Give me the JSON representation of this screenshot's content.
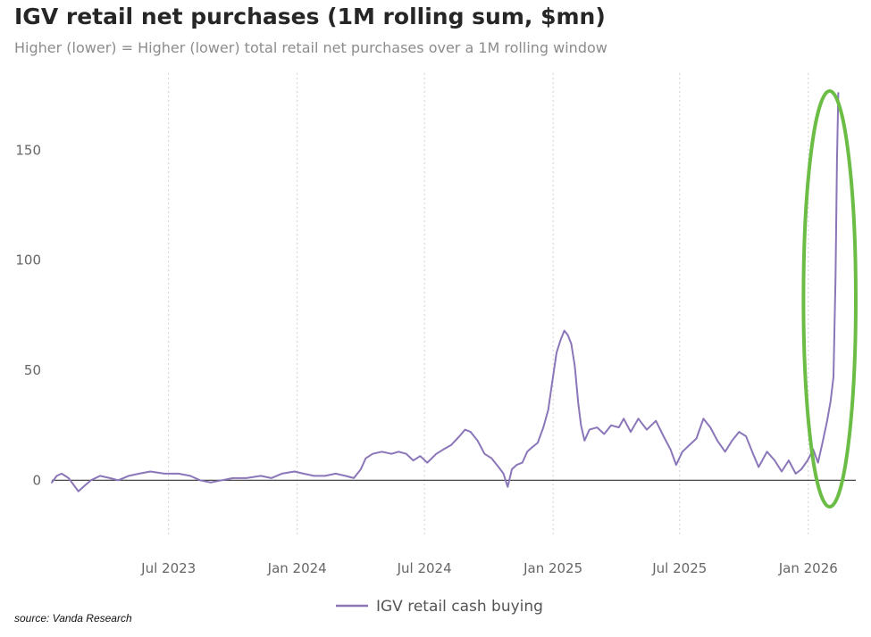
{
  "header": {
    "title": "IGV retail net purchases (1M rolling sum, $mn)",
    "subtitle": "Higher (lower) = Higher (lower) total retail net purchases over a 1M rolling window"
  },
  "footer": {
    "source": "source: Vanda Research"
  },
  "colors": {
    "series": "#8a76b8",
    "highlight": "#6cbd45",
    "zero_line": "#333333",
    "grid": "#d0d0d0"
  },
  "chart_data": {
    "type": "line",
    "title": "IGV retail net purchases (1M rolling sum, $mn)",
    "subtitle": "Higher (lower) = Higher (lower) total retail net purchases over a 1M rolling window",
    "xlabel": "",
    "ylabel": "",
    "xlim": [
      "2023-01-15",
      "2026-03-10"
    ],
    "ylim": [
      -25,
      185
    ],
    "y_ticks": [
      0,
      50,
      100,
      150
    ],
    "x_ticks": [
      {
        "date": "2023-07-01",
        "label": "Jul 2023"
      },
      {
        "date": "2024-01-01",
        "label": "Jan 2024"
      },
      {
        "date": "2024-07-01",
        "label": "Jul 2024"
      },
      {
        "date": "2025-01-01",
        "label": "Jan 2025"
      },
      {
        "date": "2025-07-01",
        "label": "Jul 2025"
      },
      {
        "date": "2026-01-01",
        "label": "Jan 2026"
      }
    ],
    "grid": "vertical-dotted",
    "legend_position": "bottom-center",
    "highlight": {
      "shape": "ellipse",
      "color": "#6cbd45",
      "x_range": [
        "2025-12-25",
        "2026-03-10"
      ]
    },
    "series": [
      {
        "name": "IGV retail cash buying",
        "color": "#8a76b8",
        "points": [
          [
            "2023-01-15",
            -1
          ],
          [
            "2023-01-22",
            2
          ],
          [
            "2023-01-29",
            3
          ],
          [
            "2023-02-08",
            1
          ],
          [
            "2023-02-15",
            -2
          ],
          [
            "2023-02-22",
            -5
          ],
          [
            "2023-03-01",
            -3
          ],
          [
            "2023-03-12",
            0
          ],
          [
            "2023-03-25",
            2
          ],
          [
            "2023-04-08",
            1
          ],
          [
            "2023-04-20",
            0
          ],
          [
            "2023-05-05",
            2
          ],
          [
            "2023-05-20",
            3
          ],
          [
            "2023-06-05",
            4
          ],
          [
            "2023-06-25",
            3
          ],
          [
            "2023-07-15",
            3
          ],
          [
            "2023-08-01",
            2
          ],
          [
            "2023-08-15",
            0
          ],
          [
            "2023-08-30",
            -1
          ],
          [
            "2023-09-15",
            0
          ],
          [
            "2023-10-01",
            1
          ],
          [
            "2023-10-20",
            1
          ],
          [
            "2023-11-10",
            2
          ],
          [
            "2023-11-25",
            1
          ],
          [
            "2023-12-10",
            3
          ],
          [
            "2023-12-28",
            4
          ],
          [
            "2024-01-10",
            3
          ],
          [
            "2024-01-25",
            2
          ],
          [
            "2024-02-10",
            2
          ],
          [
            "2024-02-25",
            3
          ],
          [
            "2024-03-10",
            2
          ],
          [
            "2024-03-22",
            1
          ],
          [
            "2024-04-01",
            5
          ],
          [
            "2024-04-08",
            10
          ],
          [
            "2024-04-18",
            12
          ],
          [
            "2024-05-01",
            13
          ],
          [
            "2024-05-15",
            12
          ],
          [
            "2024-05-25",
            13
          ],
          [
            "2024-06-05",
            12
          ],
          [
            "2024-06-15",
            9
          ],
          [
            "2024-06-25",
            11
          ],
          [
            "2024-07-05",
            8
          ],
          [
            "2024-07-18",
            12
          ],
          [
            "2024-07-28",
            14
          ],
          [
            "2024-08-08",
            16
          ],
          [
            "2024-08-20",
            20
          ],
          [
            "2024-08-28",
            23
          ],
          [
            "2024-09-05",
            22
          ],
          [
            "2024-09-15",
            18
          ],
          [
            "2024-09-25",
            12
          ],
          [
            "2024-10-05",
            10
          ],
          [
            "2024-10-15",
            6
          ],
          [
            "2024-10-22",
            3
          ],
          [
            "2024-10-28",
            -3
          ],
          [
            "2024-11-03",
            5
          ],
          [
            "2024-11-10",
            7
          ],
          [
            "2024-11-18",
            8
          ],
          [
            "2024-11-25",
            13
          ],
          [
            "2024-12-02",
            15
          ],
          [
            "2024-12-10",
            17
          ],
          [
            "2024-12-18",
            24
          ],
          [
            "2024-12-25",
            32
          ],
          [
            "2024-12-31",
            45
          ],
          [
            "2025-01-06",
            58
          ],
          [
            "2025-01-12",
            64
          ],
          [
            "2025-01-17",
            68
          ],
          [
            "2025-01-22",
            66
          ],
          [
            "2025-01-27",
            62
          ],
          [
            "2025-02-01",
            52
          ],
          [
            "2025-02-06",
            35
          ],
          [
            "2025-02-10",
            25
          ],
          [
            "2025-02-15",
            18
          ],
          [
            "2025-02-22",
            23
          ],
          [
            "2025-03-05",
            24
          ],
          [
            "2025-03-15",
            21
          ],
          [
            "2025-03-25",
            25
          ],
          [
            "2025-04-05",
            24
          ],
          [
            "2025-04-12",
            28
          ],
          [
            "2025-04-22",
            22
          ],
          [
            "2025-05-03",
            28
          ],
          [
            "2025-05-15",
            23
          ],
          [
            "2025-05-28",
            27
          ],
          [
            "2025-06-08",
            20
          ],
          [
            "2025-06-18",
            14
          ],
          [
            "2025-06-26",
            7
          ],
          [
            "2025-07-05",
            13
          ],
          [
            "2025-07-15",
            16
          ],
          [
            "2025-07-25",
            19
          ],
          [
            "2025-08-04",
            28
          ],
          [
            "2025-08-14",
            24
          ],
          [
            "2025-08-24",
            18
          ],
          [
            "2025-09-04",
            13
          ],
          [
            "2025-09-14",
            18
          ],
          [
            "2025-09-24",
            22
          ],
          [
            "2025-10-04",
            20
          ],
          [
            "2025-10-14",
            12
          ],
          [
            "2025-10-22",
            6
          ],
          [
            "2025-11-03",
            13
          ],
          [
            "2025-11-14",
            9
          ],
          [
            "2025-11-24",
            4
          ],
          [
            "2025-12-04",
            9
          ],
          [
            "2025-12-14",
            3
          ],
          [
            "2025-12-22",
            5
          ],
          [
            "2025-12-31",
            9
          ],
          [
            "2026-01-08",
            14
          ],
          [
            "2026-01-15",
            8
          ],
          [
            "2026-01-22",
            18
          ],
          [
            "2026-01-28",
            27
          ],
          [
            "2026-02-02",
            36
          ],
          [
            "2026-02-06",
            47
          ],
          [
            "2026-02-09",
            92
          ],
          [
            "2026-02-11",
            145
          ],
          [
            "2026-02-13",
            176
          ]
        ]
      }
    ]
  }
}
